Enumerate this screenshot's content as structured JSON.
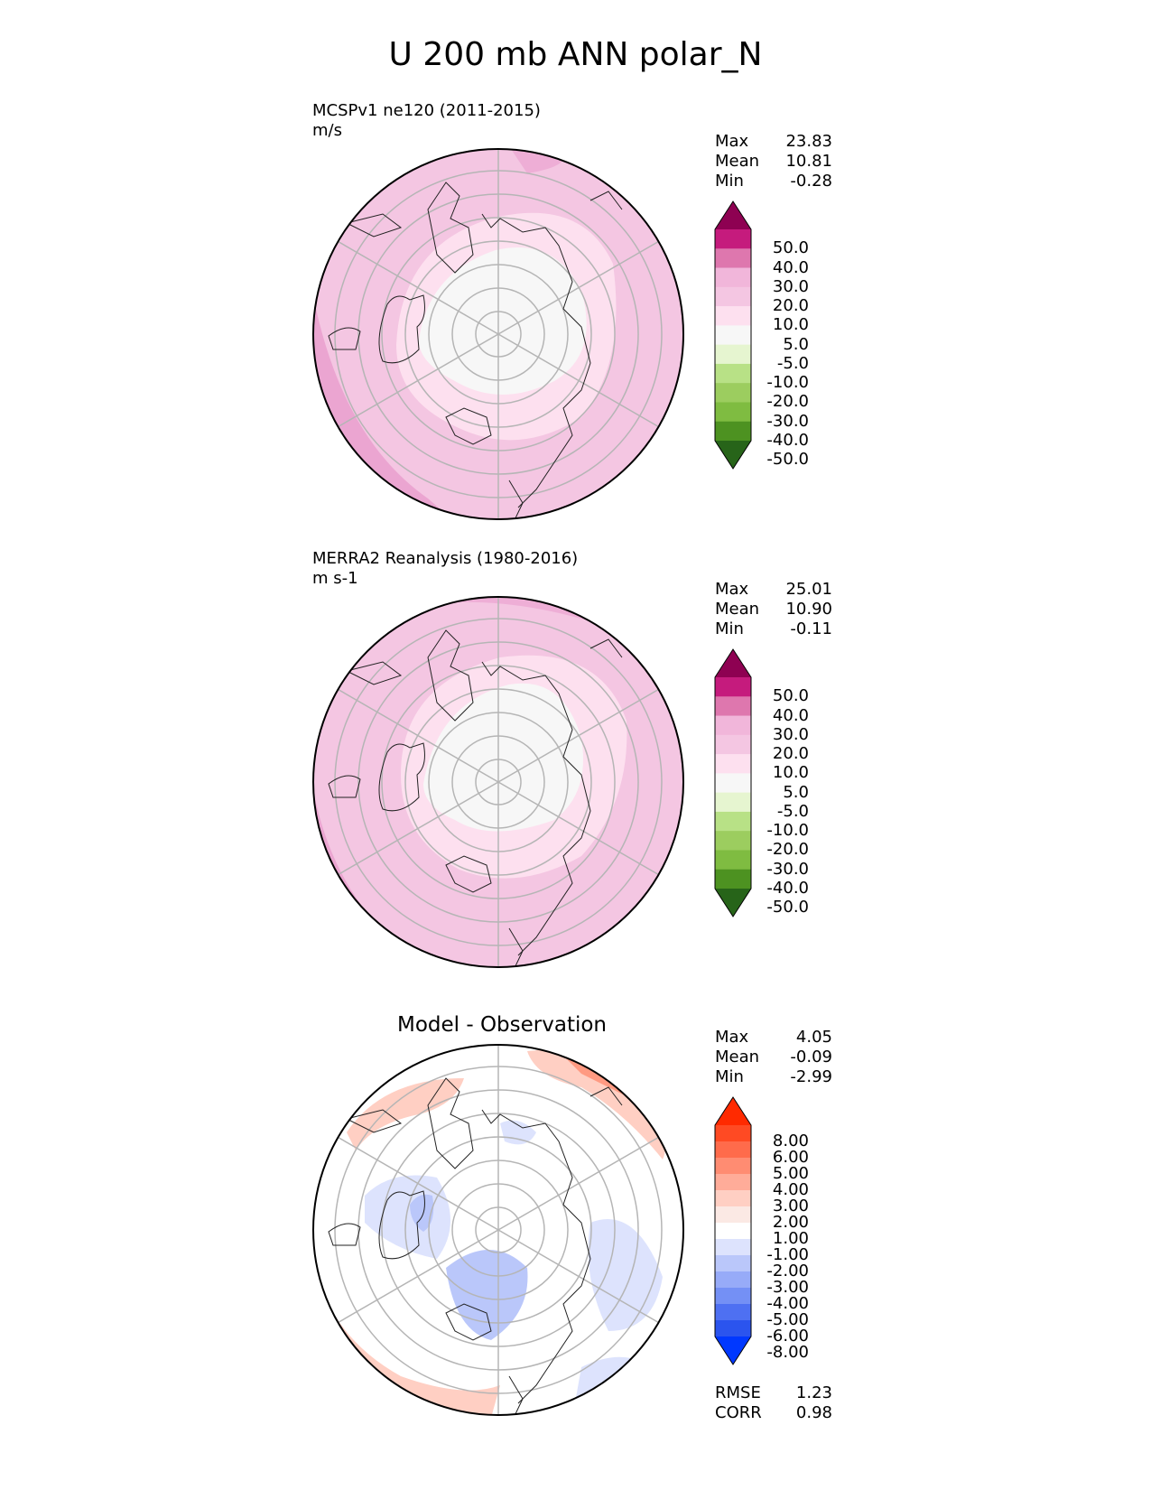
{
  "title": "U 200 mb ANN polar_N",
  "panels": [
    {
      "title": "MCSPv1 ne120 (2011-2015)",
      "units": "m/s",
      "stats": [
        {
          "label": "Max",
          "value": "23.83"
        },
        {
          "label": "Mean",
          "value": "10.81"
        },
        {
          "label": "Min",
          "value": "-0.28"
        }
      ],
      "colorbar": {
        "labels": [
          "50.0",
          "40.0",
          "30.0",
          "20.0",
          "10.0",
          "5.0",
          "-5.0",
          "-10.0",
          "-20.0",
          "-30.0",
          "-40.0",
          "-50.0"
        ],
        "colors": [
          "#8e0152",
          "#c51b7d",
          "#de77ae",
          "#f1b6da",
          "#f4c6e2",
          "#fde0ef",
          "#f7f7f7",
          "#e6f5d0",
          "#b8e186",
          "#9ccd5f",
          "#7fbc41",
          "#4d9221",
          "#276419"
        ]
      },
      "value_range": {
        "max": 23.83,
        "mean": 10.81,
        "min": -0.28
      }
    },
    {
      "title": "MERRA2 Reanalysis (1980-2016)",
      "units": "m s-1",
      "stats": [
        {
          "label": "Max",
          "value": "25.01"
        },
        {
          "label": "Mean",
          "value": "10.90"
        },
        {
          "label": "Min",
          "value": "-0.11"
        }
      ],
      "colorbar": {
        "labels": [
          "50.0",
          "40.0",
          "30.0",
          "20.0",
          "10.0",
          "5.0",
          "-5.0",
          "-10.0",
          "-20.0",
          "-30.0",
          "-40.0",
          "-50.0"
        ],
        "colors": [
          "#8e0152",
          "#c51b7d",
          "#de77ae",
          "#f1b6da",
          "#f4c6e2",
          "#fde0ef",
          "#f7f7f7",
          "#e6f5d0",
          "#b8e186",
          "#9ccd5f",
          "#7fbc41",
          "#4d9221",
          "#276419"
        ]
      },
      "value_range": {
        "max": 25.01,
        "mean": 10.9,
        "min": -0.11
      }
    },
    {
      "title": "Model - Observation",
      "stats": [
        {
          "label": "Max",
          "value": "4.05"
        },
        {
          "label": "Mean",
          "value": "-0.09"
        },
        {
          "label": "Min",
          "value": "-2.99"
        }
      ],
      "colorbar": {
        "labels": [
          "8.00",
          "6.00",
          "5.00",
          "4.00",
          "3.00",
          "2.00",
          "1.00",
          "-1.00",
          "-2.00",
          "-3.00",
          "-4.00",
          "-5.00",
          "-6.00",
          "-8.00"
        ],
        "colors": [
          "#ff2a00",
          "#ff4a23",
          "#ff6b4b",
          "#ff8c72",
          "#ffac99",
          "#ffcfc3",
          "#fbe9e4",
          "#ffffff",
          "#dde3fd",
          "#bac7fa",
          "#97abf8",
          "#7490f5",
          "#4e70f2",
          "#2b54ee",
          "#0038ff"
        ]
      },
      "metrics": [
        {
          "label": "RMSE",
          "value": "1.23"
        },
        {
          "label": "CORR",
          "value": "0.98"
        }
      ],
      "value_range": {
        "max": 4.05,
        "mean": -0.09,
        "min": -2.99
      }
    }
  ]
}
